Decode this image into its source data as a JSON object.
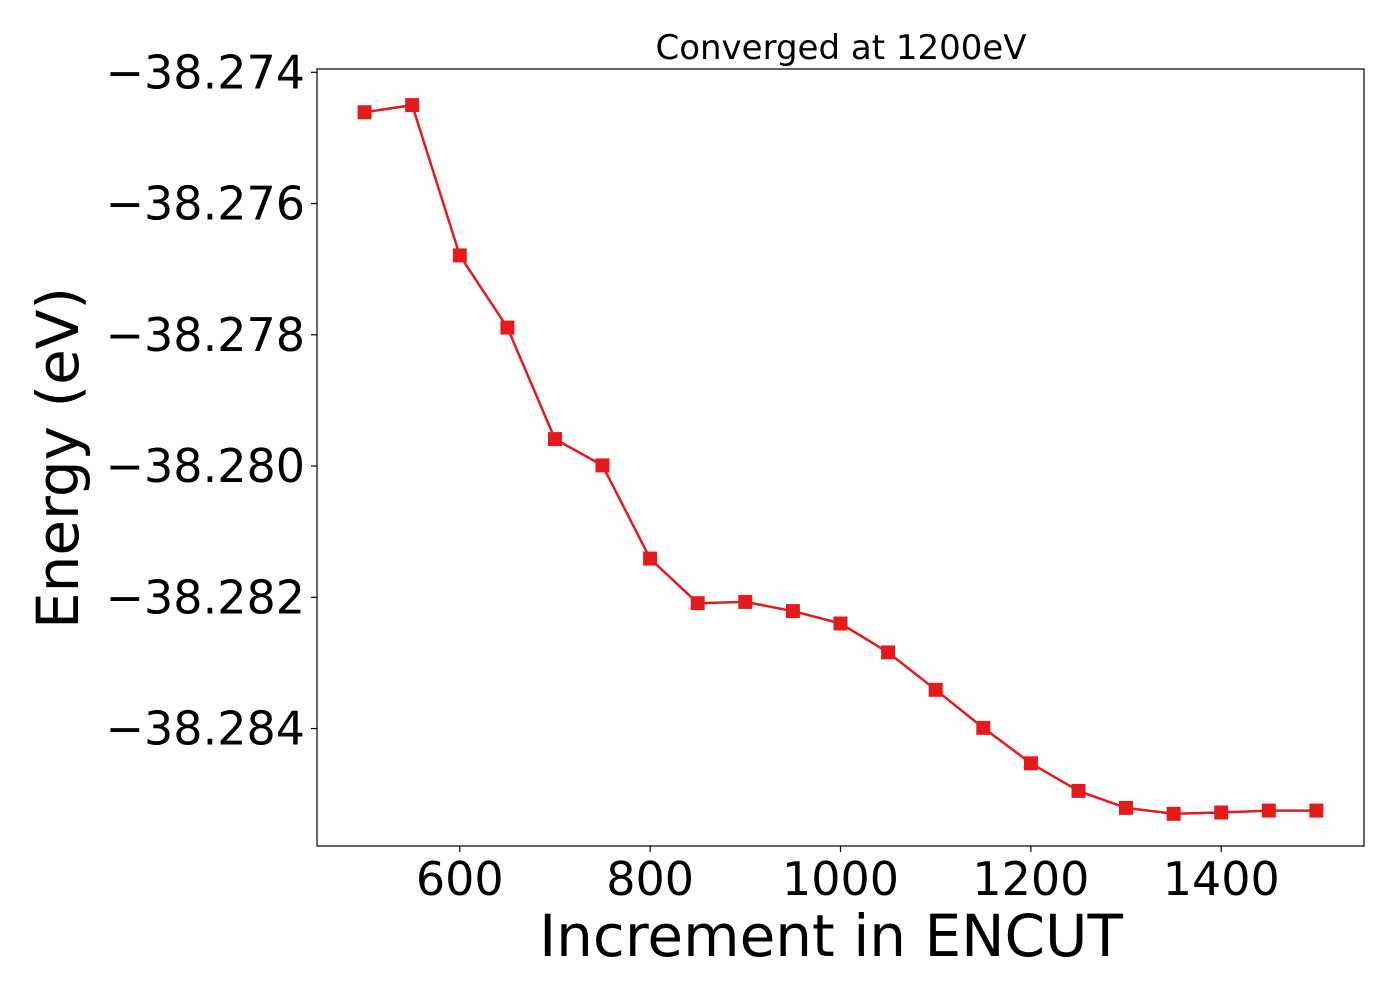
{
  "chart_data": {
    "type": "line",
    "title": "Converged at 1200eV",
    "xlabel": "Increment in ENCUT",
    "ylabel": "Energy (eV)",
    "xlim": [
      450,
      1550
    ],
    "ylim": [
      -38.28579,
      -38.27395
    ],
    "x_ticks": [
      600,
      800,
      1000,
      1200,
      1400
    ],
    "x_tick_labels": [
      "600",
      "800",
      "1000",
      "1200",
      "1400"
    ],
    "y_ticks": [
      -38.274,
      -38.276,
      -38.278,
      -38.28,
      -38.282,
      -38.284
    ],
    "y_tick_labels": [
      "−38.274",
      "−38.276",
      "−38.278",
      "−38.280",
      "−38.282",
      "−38.284"
    ],
    "grid": false,
    "series": [
      {
        "color": "#e41a1c",
        "marker": "square",
        "x": [
          500,
          550,
          600,
          650,
          700,
          750,
          800,
          850,
          900,
          950,
          1000,
          1050,
          1100,
          1150,
          1200,
          1250,
          1300,
          1350,
          1400,
          1450,
          1500
        ],
        "y": [
          -38.27461,
          -38.2745,
          -38.27679,
          -38.27789,
          -38.27959,
          -38.27999,
          -38.28141,
          -38.28209,
          -38.28207,
          -38.28221,
          -38.2824,
          -38.28284,
          -38.28341,
          -38.28399,
          -38.28453,
          -38.28495,
          -38.28521,
          -38.2853,
          -38.28528,
          -38.28525,
          -38.28525
        ]
      }
    ]
  }
}
